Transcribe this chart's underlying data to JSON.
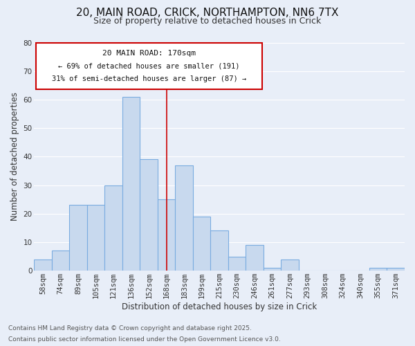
{
  "title": "20, MAIN ROAD, CRICK, NORTHAMPTON, NN6 7TX",
  "subtitle": "Size of property relative to detached houses in Crick",
  "xlabel": "Distribution of detached houses by size in Crick",
  "ylabel": "Number of detached properties",
  "bar_labels": [
    "58sqm",
    "74sqm",
    "89sqm",
    "105sqm",
    "121sqm",
    "136sqm",
    "152sqm",
    "168sqm",
    "183sqm",
    "199sqm",
    "215sqm",
    "230sqm",
    "246sqm",
    "261sqm",
    "277sqm",
    "293sqm",
    "308sqm",
    "324sqm",
    "340sqm",
    "355sqm",
    "371sqm"
  ],
  "bar_values": [
    4,
    7,
    23,
    23,
    30,
    61,
    39,
    25,
    37,
    19,
    14,
    5,
    9,
    1,
    4,
    0,
    0,
    0,
    0,
    1,
    1
  ],
  "bar_color": "#c8d9ee",
  "bar_edge_color": "#7aace0",
  "vline_x_idx": 7,
  "vline_color": "#cc0000",
  "ylim": [
    0,
    80
  ],
  "yticks": [
    0,
    10,
    20,
    30,
    40,
    50,
    60,
    70,
    80
  ],
  "annotation_title": "20 MAIN ROAD: 170sqm",
  "annotation_line1": "← 69% of detached houses are smaller (191)",
  "annotation_line2": "31% of semi-detached houses are larger (87) →",
  "annotation_box_color": "#ffffff",
  "annotation_box_edge": "#cc0000",
  "footnote1": "Contains HM Land Registry data © Crown copyright and database right 2025.",
  "footnote2": "Contains public sector information licensed under the Open Government Licence v3.0.",
  "background_color": "#e8eef8",
  "grid_color": "#ffffff",
  "title_fontsize": 11,
  "subtitle_fontsize": 9,
  "axis_label_fontsize": 8.5,
  "tick_fontsize": 7.5,
  "annotation_title_fontsize": 8,
  "annotation_body_fontsize": 7.5,
  "footnote_fontsize": 6.5
}
